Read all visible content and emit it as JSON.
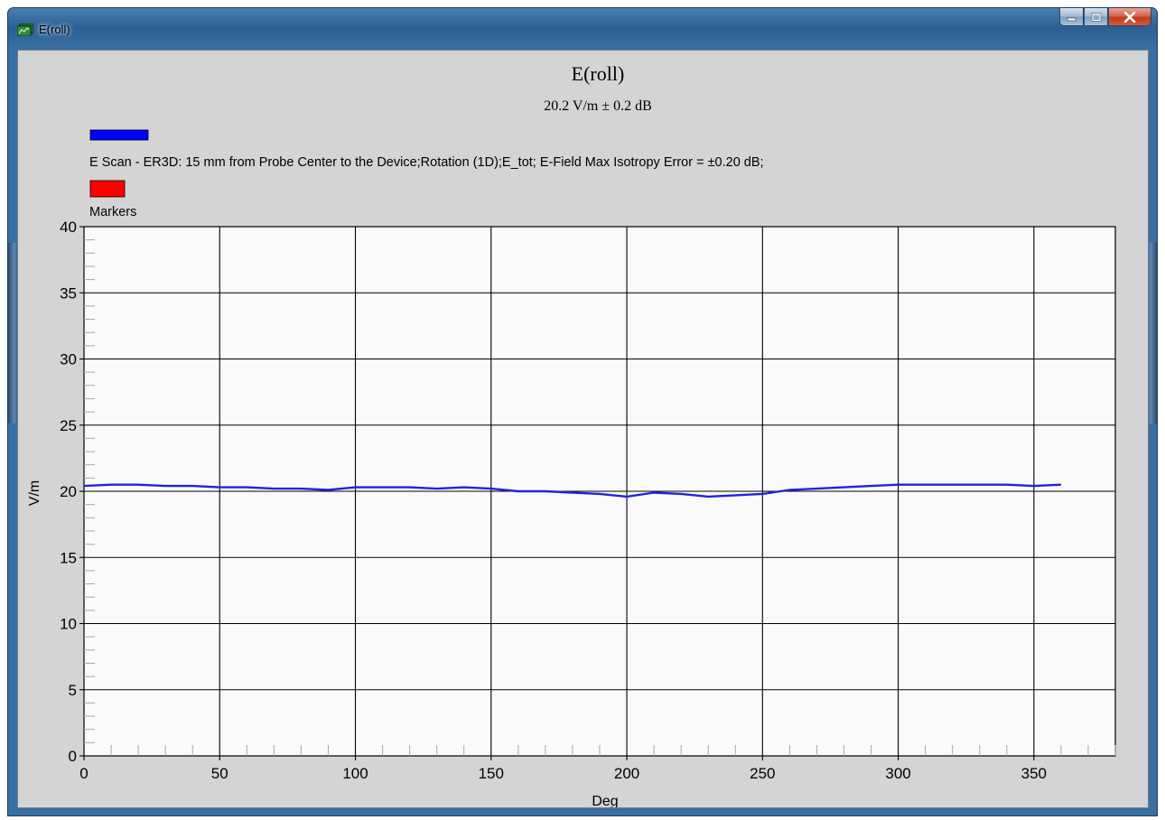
{
  "window": {
    "title": "E(roll)",
    "colors": {
      "frame": "#3a6fa2",
      "close": "#c2391b",
      "client": "#d4d4d4"
    }
  },
  "chart_data": {
    "type": "line",
    "title": "E(roll)",
    "subtitle": "20.2 V/m ± 0.2 dB",
    "xlabel": "Deg",
    "ylabel": "V/m",
    "xlim": [
      0,
      380
    ],
    "ylim": [
      0,
      40
    ],
    "xticks": [
      0,
      50,
      100,
      150,
      200,
      250,
      300,
      350
    ],
    "yticks": [
      0,
      5,
      10,
      15,
      20,
      25,
      30,
      35,
      40
    ],
    "grid": true,
    "legend_placement": "top-left",
    "legend": [
      {
        "label": "E Scan - ER3D: 15 mm from Probe Center to the Device;Rotation (1D);E_tot; E-Field Max Isotropy Error = ±0.20 dB;",
        "color": "#0000ff"
      },
      {
        "label": "Markers",
        "color": "#ff0000"
      }
    ],
    "series": [
      {
        "color": "#2222dd",
        "x": [
          0,
          10,
          20,
          30,
          40,
          50,
          60,
          70,
          80,
          90,
          100,
          110,
          120,
          130,
          140,
          150,
          160,
          170,
          180,
          190,
          200,
          210,
          220,
          230,
          240,
          250,
          260,
          270,
          280,
          290,
          300,
          310,
          320,
          330,
          340,
          350,
          360
        ],
        "y": [
          20.4,
          20.5,
          20.5,
          20.4,
          20.4,
          20.3,
          20.3,
          20.2,
          20.2,
          20.1,
          20.3,
          20.3,
          20.3,
          20.2,
          20.3,
          20.2,
          20.0,
          20.0,
          19.9,
          19.8,
          19.6,
          19.9,
          19.8,
          19.6,
          19.7,
          19.8,
          20.1,
          20.2,
          20.3,
          20.4,
          20.5,
          20.5,
          20.5,
          20.5,
          20.5,
          20.4,
          20.5
        ]
      }
    ]
  }
}
